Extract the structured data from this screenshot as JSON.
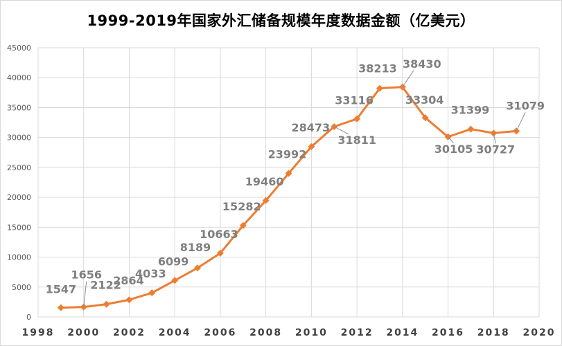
{
  "chart_data": {
    "type": "line",
    "title": "1999-2019年国家外汇储备规模年度数据金额（亿美元）",
    "xlabel": "",
    "ylabel": "",
    "xlim": [
      1998,
      2020
    ],
    "ylim": [
      0,
      45000
    ],
    "xticks": [
      1998,
      2000,
      2002,
      2004,
      2006,
      2008,
      2010,
      2012,
      2014,
      2016,
      2018,
      2020
    ],
    "yticks": [
      0,
      5000,
      10000,
      15000,
      20000,
      25000,
      30000,
      35000,
      40000,
      45000
    ],
    "grid": true,
    "legend": "none",
    "color": "#ed7d31",
    "series": [
      {
        "x": [
          1999,
          2000,
          2001,
          2002,
          2003,
          2004,
          2005,
          2006,
          2007,
          2008,
          2009,
          2010,
          2011,
          2012,
          2013,
          2014,
          2015,
          2016,
          2017,
          2018,
          2019
        ],
        "values": [
          1547,
          1656,
          2122,
          2864,
          4033,
          6099,
          8189,
          10663,
          15282,
          19460,
          23992,
          28473,
          31811,
          33116,
          38213,
          38430,
          33304,
          30105,
          31399,
          30727,
          31079
        ],
        "data_labels": [
          "1547",
          "1656",
          "2122",
          "2864",
          "4033",
          "6099",
          "8189",
          "10663",
          "15282",
          "19460",
          "23992",
          "28473",
          "31811",
          "33116",
          "38213",
          "38430",
          "33304",
          "30105",
          "31399",
          "30727",
          "31079"
        ]
      }
    ]
  }
}
